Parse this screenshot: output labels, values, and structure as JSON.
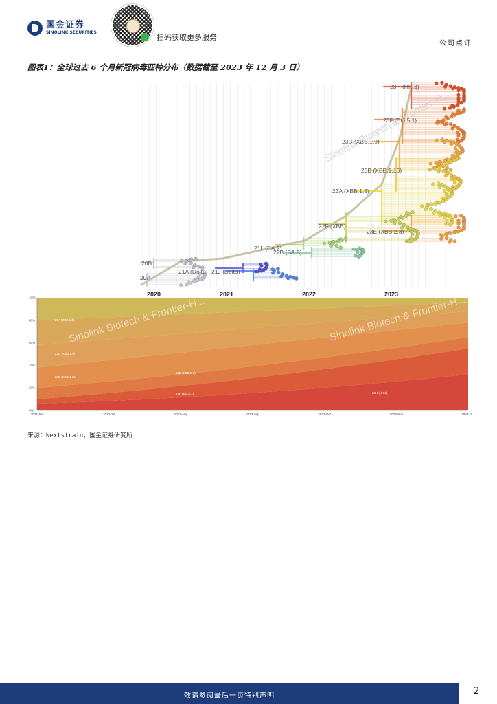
{
  "header": {
    "logo_cn": "国金证券",
    "logo_en": "SINOLINK SECURITIES",
    "qr_caption": "扫码获取更多服务",
    "report_type": "公司点评"
  },
  "figure": {
    "title": "图表1：全球过去 6 个月新冠病毒亚种分布（数据截至 2023 年 12 月 3 日）",
    "watermark": "Sinolink Biotech & Frontier-H...",
    "tree": {
      "year_labels": [
        "2020",
        "2021",
        "2022",
        "2023"
      ],
      "clades": [
        {
          "label": "23H (HK.3)",
          "color": "#e04a1f"
        },
        {
          "label": "23F (EG.5.1)",
          "color": "#ee7a2c"
        },
        {
          "label": "23D (XBB.1.9)",
          "color": "#f2a73a"
        },
        {
          "label": "23B (XBB.1.16)",
          "color": "#eec535"
        },
        {
          "label": "23A (XBB.1.5)",
          "color": "#e7d53c"
        },
        {
          "label": "22F (XBB)",
          "color": "#c9cf52"
        },
        {
          "label": "23E (XBB.2.3)",
          "color": "#f09a3c"
        },
        {
          "label": "21L (BA.2)",
          "color": "#a3cf6e"
        },
        {
          "label": "22B (BA.5)",
          "color": "#7fc9a0"
        },
        {
          "label": "20B",
          "color": "#b9b9c4"
        },
        {
          "label": "21A (Delta)",
          "color": "#4f4fd1"
        },
        {
          "label": "21J (Delta)",
          "color": "#4f7fe6"
        },
        {
          "label": "20A",
          "color": "#c7c7d1"
        }
      ]
    },
    "stream": {
      "y_ticks": [
        "100%",
        "80%",
        "60%",
        "40%",
        "20%",
        "0%"
      ],
      "x_ticks": [
        "2023-Jun",
        "2023-Jul",
        "2023-Aug",
        "2023-Sep",
        "2023-Oct",
        "2023-Nov",
        "2023-Dec"
      ],
      "labels": [
        "23A (XBB.1.5)",
        "23D (XBB.1.9)",
        "23B (XBB.1.16)",
        "23E (XBB.2.3)",
        "23F (EG.5.1)",
        "23H (HK.3)"
      ],
      "colors": [
        "#cfb85a",
        "#d9a85a",
        "#dea05a",
        "#e3904f",
        "#e07a45",
        "#da5a3a",
        "#d4473a"
      ]
    },
    "source": "来源：Nextstrain，国金证券研究所"
  },
  "footer": {
    "disclaimer": "敬请参阅最后一页特别声明",
    "page_number": "2"
  }
}
